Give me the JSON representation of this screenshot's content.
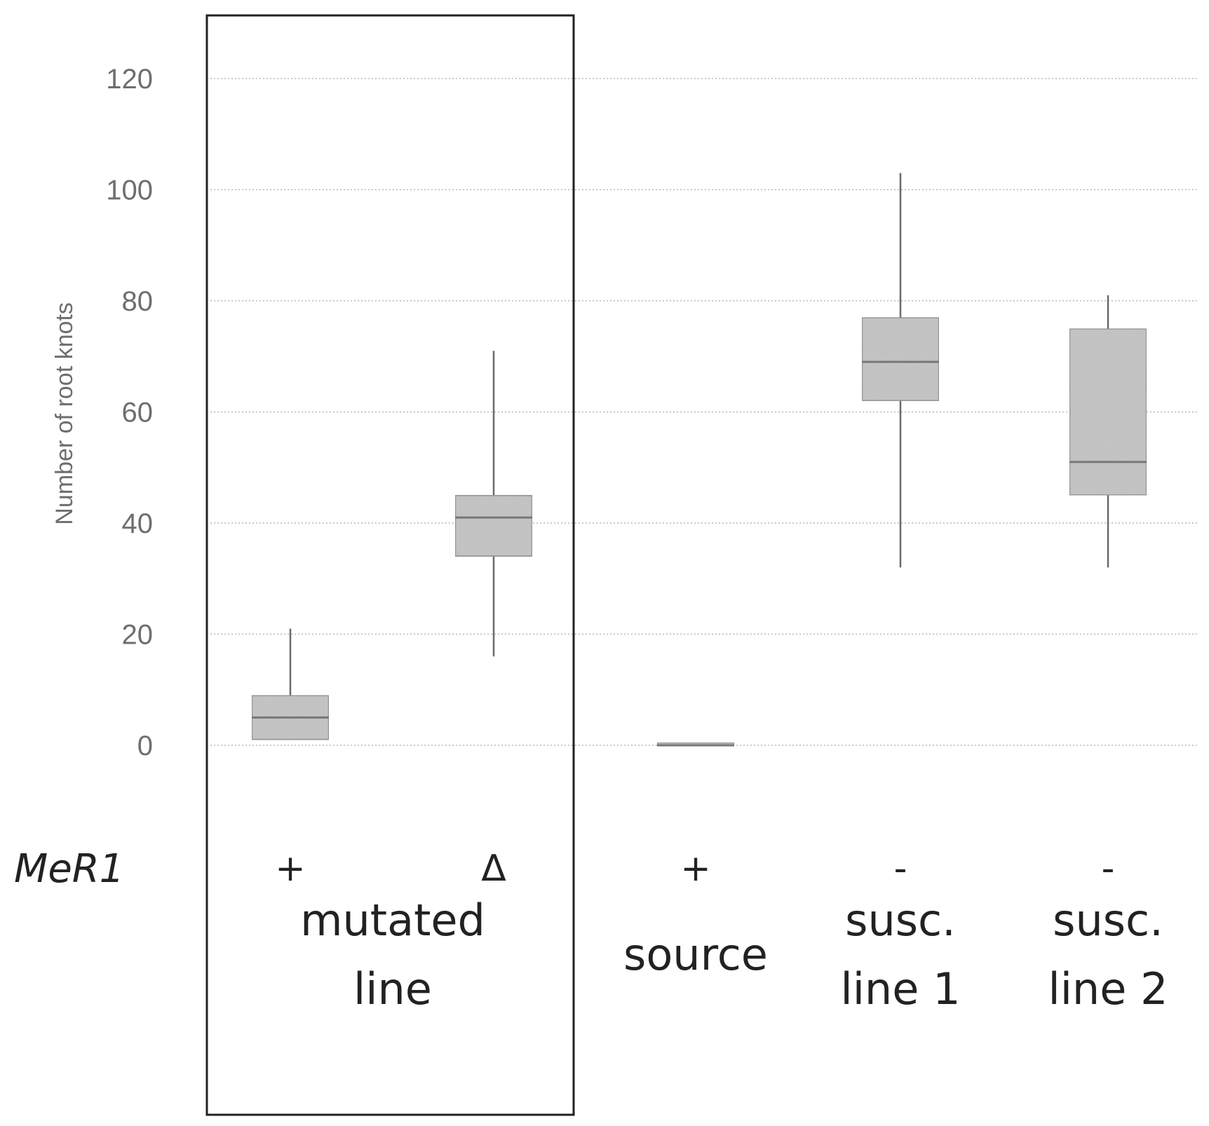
{
  "chart_data": {
    "type": "box",
    "ylabel": "Number of root knots",
    "ylim": [
      0,
      120
    ],
    "yticks": [
      0,
      20,
      40,
      60,
      80,
      100,
      120
    ],
    "ytick_labels": [
      "0",
      "20",
      "40",
      "60",
      "80",
      "100",
      "120"
    ],
    "grid": true,
    "row_label": "MeR1",
    "categories": [
      {
        "symbol": "+",
        "min": 1,
        "q1": 1,
        "median": 5,
        "q3": 9,
        "max": 21
      },
      {
        "symbol": "Δ",
        "min": 16,
        "q1": 34,
        "median": 41,
        "q3": 45,
        "max": 71
      },
      {
        "symbol": "+",
        "min": 0,
        "q1": 0,
        "median": 0,
        "q3": 0.5,
        "max": 0.5
      },
      {
        "symbol": "-",
        "min": 32,
        "q1": 62,
        "median": 69,
        "q3": 77,
        "max": 103
      },
      {
        "symbol": "-",
        "min": 32,
        "q1": 45,
        "median": 51,
        "q3": 75,
        "max": 81
      }
    ],
    "groups": [
      {
        "lines": [
          "mutated",
          "line"
        ],
        "boxed": true
      },
      {
        "lines": [
          "source"
        ],
        "boxed": false
      },
      {
        "lines": [
          "susc.",
          "line 1"
        ],
        "boxed": false
      },
      {
        "lines": [
          "susc.",
          "line 2"
        ],
        "boxed": false
      }
    ],
    "colors": {
      "box_fill": "#c4c4c4",
      "frame": "#222222"
    }
  }
}
